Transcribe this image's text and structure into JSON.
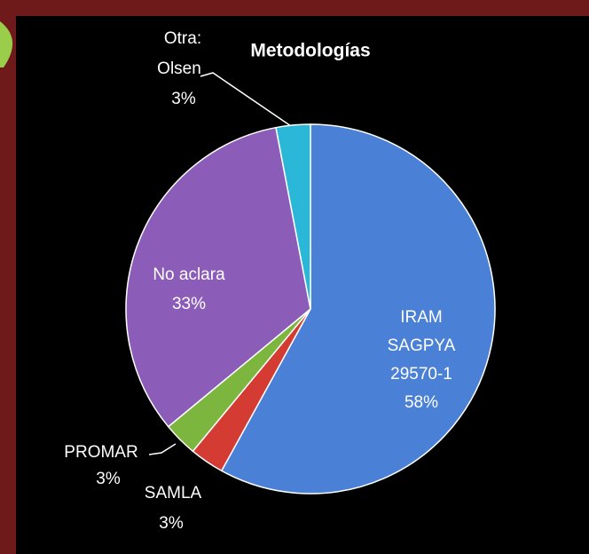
{
  "chart_data": {
    "type": "pie",
    "title": "Metodologías",
    "categories": [
      [
        "IRAM",
        "SAGPYA",
        "29570-1"
      ],
      [
        "SAMLA"
      ],
      [
        "PROMAR"
      ],
      [
        "No aclara"
      ],
      [
        "Otra:",
        "Olsen"
      ]
    ],
    "values": [
      58,
      3,
      3,
      33,
      3
    ],
    "value_labels": [
      "58%",
      "3%",
      "3%",
      "33%",
      "3%"
    ],
    "colors": [
      "#4a80d6",
      "#d43b33",
      "#7cb63e",
      "#8b5db9",
      "#2bb7d7"
    ]
  }
}
